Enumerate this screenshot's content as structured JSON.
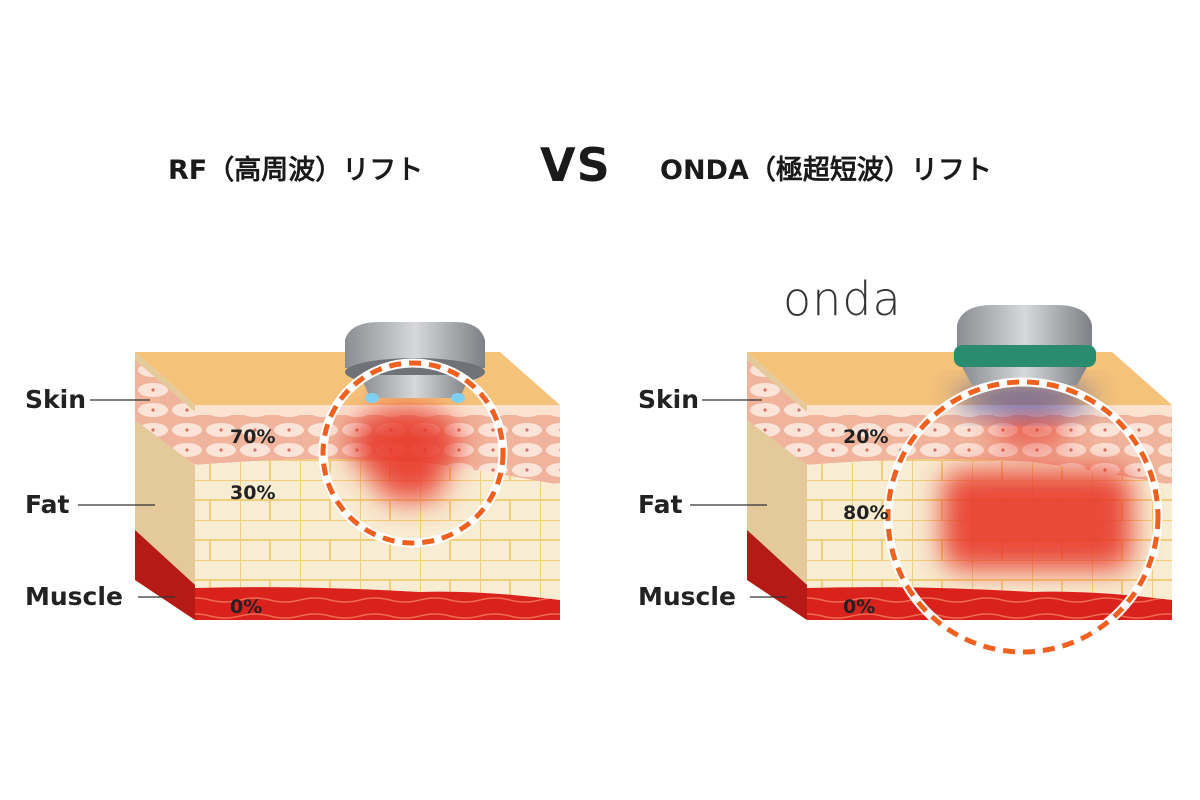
{
  "header": {
    "left_title": "RF（高周波）リフト",
    "vs": "VS",
    "right_title": "ONDA（極超短波）リフト"
  },
  "left_panel": {
    "labels": {
      "skin": "Skin",
      "fat": "Fat",
      "muscle": "Muscle"
    },
    "percentages": {
      "skin": "70%",
      "fat": "30%",
      "muscle": "0%"
    }
  },
  "right_panel": {
    "logo": "onda",
    "labels": {
      "skin": "Skin",
      "fat": "Fat",
      "muscle": "Muscle"
    },
    "percentages": {
      "skin": "20%",
      "fat": "80%",
      "muscle": "0%"
    }
  },
  "colors": {
    "skin_top": "#f5c27a",
    "dermis": "#f2b8a0",
    "fat": "#f8ecd2",
    "muscle": "#d9221c",
    "heat": "#e8392a",
    "dashed_circle": "#f0601e",
    "onda_ring": "#2a8c6e"
  }
}
